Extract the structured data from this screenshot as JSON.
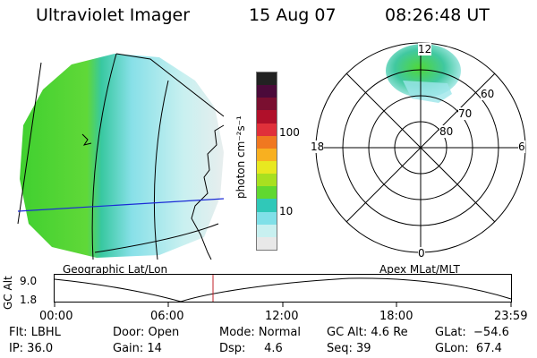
{
  "header": {
    "title": "Ultraviolet Imager",
    "date": "15 Aug 07",
    "time": "08:26:48 UT"
  },
  "colorbar": {
    "unit_label": "photon cm⁻²s⁻¹",
    "ticks": [
      "100",
      "10"
    ],
    "colors": [
      "#222222",
      "#4b0a3a",
      "#7a0f30",
      "#b0102a",
      "#e0303a",
      "#f07820",
      "#f8b020",
      "#e8e820",
      "#a8e020",
      "#60d830",
      "#30c8b8",
      "#80e0e8",
      "#c8f0f0",
      "#e8e8e8"
    ]
  },
  "geo_map": {
    "caption": "Geographic Lat/Lon"
  },
  "polar_plot": {
    "caption": "Apex MLat/MLT",
    "mlt_labels": [
      "12",
      "18",
      "6",
      "0"
    ],
    "lat_labels": [
      "60",
      "70",
      "80"
    ]
  },
  "timeline": {
    "axis_label": "GC Alt",
    "y_ticks": [
      "9.0",
      "1.8"
    ],
    "x_ticks": [
      "00:00",
      "06:00",
      "12:00",
      "18:00",
      "23:59"
    ]
  },
  "status": {
    "flt": "Flt: LBHL",
    "ip": "IP: 36.0",
    "door": "Door: Open",
    "gain": "Gain: 14",
    "mode": "Mode: Normal",
    "dsp": "Dsp:     4.6",
    "gc_alt": "GC Alt: 4.6 Re",
    "seq": "Seq: 39",
    "glat": "GLat:  −54.6",
    "glon": "GLon:  67.4"
  }
}
